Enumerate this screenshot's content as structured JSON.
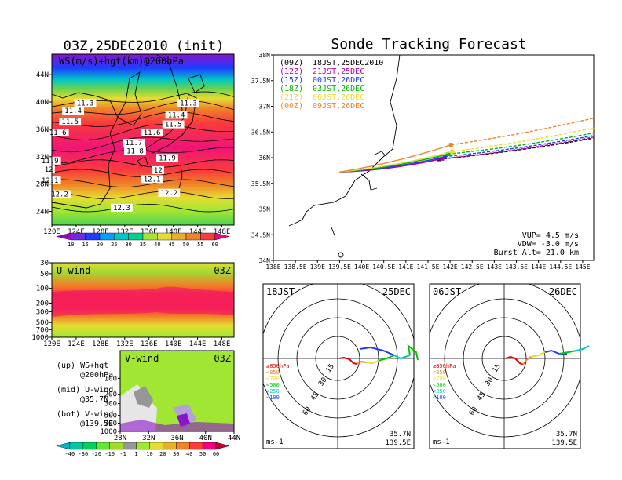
{
  "left": {
    "title": "03Z,25DEC2010 (init)",
    "ws_panel": {
      "label": "WS(m/s)+hgt(km)@200hPa",
      "lat_labels": [
        "44N",
        "40N",
        "36N",
        "32N",
        "28N",
        "24N"
      ],
      "lon_labels": [
        "120E",
        "124E",
        "128E",
        "132E",
        "136E",
        "140E",
        "144E",
        "148E"
      ],
      "contour_labels": [
        {
          "text": "11.3",
          "lon": 125.5,
          "lat": 39.6
        },
        {
          "text": "11.3",
          "lon": 142.5,
          "lat": 39.6
        },
        {
          "text": "11.4",
          "lon": 123.5,
          "lat": 38.5
        },
        {
          "text": "11.4",
          "lon": 140.5,
          "lat": 37.9
        },
        {
          "text": "11.5",
          "lon": 123.0,
          "lat": 36.9
        },
        {
          "text": "11.5",
          "lon": 140.0,
          "lat": 36.5
        },
        {
          "text": "11.6",
          "lon": 121.0,
          "lat": 35.3
        },
        {
          "text": "11.6",
          "lon": 136.5,
          "lat": 35.3
        },
        {
          "text": "11.7",
          "lon": 133.5,
          "lat": 33.8
        },
        {
          "text": "11.8",
          "lon": 133.7,
          "lat": 32.6
        },
        {
          "text": "11.9",
          "lon": 119.7,
          "lat": 31.2
        },
        {
          "text": "11.9",
          "lon": 139.0,
          "lat": 31.6
        },
        {
          "text": "12",
          "lon": 119.5,
          "lat": 29.9
        },
        {
          "text": "12",
          "lon": 137.5,
          "lat": 29.8
        },
        {
          "text": "12.1",
          "lon": 119.7,
          "lat": 28.3
        },
        {
          "text": "12.1",
          "lon": 136.5,
          "lat": 28.5
        },
        {
          "text": "12.2",
          "lon": 121.3,
          "lat": 26.3
        },
        {
          "text": "12.2",
          "lon": 139.3,
          "lat": 26.5
        },
        {
          "text": "12.3",
          "lon": 131.5,
          "lat": 24.3
        }
      ],
      "colorbar_labels": [
        "10",
        "15",
        "20",
        "25",
        "30",
        "35",
        "40",
        "45",
        "50",
        "55",
        "60"
      ],
      "colorbar_colors": [
        "#a000c8",
        "#6e28e6",
        "#1e3cff",
        "#00a0ff",
        "#00c8c8",
        "#00d28c",
        "#a0e632",
        "#e6dc32",
        "#e6af2d",
        "#f08228",
        "#fa3c3c",
        "#f00082"
      ]
    },
    "u_panel": {
      "label": "U-wind",
      "time": "03Z",
      "levels": [
        "30",
        "50",
        "100",
        "200",
        "300",
        "500",
        "700",
        "1000"
      ],
      "lon_labels": [
        "120E",
        "124E",
        "128E",
        "132E",
        "136E",
        "140E",
        "144E",
        "148E"
      ]
    },
    "v_panel": {
      "label": "V-wind",
      "time": "03Z",
      "levels": [
        "100",
        "200",
        "300",
        "500",
        "700",
        "1000"
      ],
      "lat_labels": [
        "28N",
        "32N",
        "36N",
        "40N",
        "44N"
      ],
      "colorbar_labels": [
        "-40",
        "-30",
        "-20",
        "-10",
        "-1",
        "1",
        "10",
        "20",
        "30",
        "40",
        "50",
        "60"
      ],
      "colorbar_colors": [
        "#00b4c8",
        "#00c8a0",
        "#00d25a",
        "#64e632",
        "#a0dc28",
        "#969696",
        "#a0e632",
        "#e6dc32",
        "#e6af2d",
        "#f08228",
        "#fa3c3c",
        "#f00082",
        "#c80032"
      ]
    },
    "legend_notes": [
      {
        "title": "(up) WS+hgt",
        "sub": "@200hPa"
      },
      {
        "title": "(mid) U-wind",
        "sub": "@35.7N"
      },
      {
        "title": "(bot) V-wind",
        "sub": "@139.5E"
      }
    ]
  },
  "right": {
    "title": "Sonde Tracking Forecast",
    "lat_labels": [
      "38N",
      "37.5N",
      "37N",
      "36.5N",
      "36N",
      "35.5N",
      "35N",
      "34.5N",
      "34N"
    ],
    "lon_labels": [
      "138E",
      "138.5E",
      "139E",
      "139.5E",
      "140E",
      "140.5E",
      "141E",
      "141.5E",
      "142E",
      "142.5E",
      "143E",
      "143.5E",
      "144E",
      "144.5E",
      "145E"
    ],
    "track_legend": [
      {
        "z": "(09Z)",
        "jst": "18JST,25DEC2010",
        "color": "#000000"
      },
      {
        "z": "(12Z)",
        "jst": "21JST,25DEC",
        "color": "#b400b4"
      },
      {
        "z": "(15Z)",
        "jst": "00JST,26DEC",
        "color": "#1e3cff"
      },
      {
        "z": "(18Z)",
        "jst": "03JST,26DEC",
        "color": "#00b400"
      },
      {
        "z": "(21Z)",
        "jst": "06JST,26DEC",
        "color": "#e6dc32"
      },
      {
        "z": "(00Z)",
        "jst": "09JST,26DEC",
        "color": "#f08228"
      }
    ],
    "params": [
      "VUP= 4.5 m/s",
      "VDW= -3.0 m/s",
      "Burst Alt= 21.0 km"
    ]
  },
  "hodo_left": {
    "time": "18JST",
    "date": "25DEC",
    "ring_labels": [
      "15",
      "30",
      "45",
      "60"
    ],
    "unit": "ms-1",
    "lat": "35.7N",
    "lon": "139.5E",
    "levels": [
      {
        "text": "≥850hPa",
        "color": "#e60000"
      },
      {
        "text": "<850",
        "color": "#f08228"
      },
      {
        "text": "<700",
        "color": "#e6dc32"
      },
      {
        "text": "<500",
        "color": "#00c800"
      },
      {
        "text": "<250",
        "color": "#00c8c8"
      },
      {
        "text": "<100",
        "color": "#1e3cff"
      }
    ]
  },
  "hodo_right": {
    "time": "06JST",
    "date": "26DEC",
    "ring_labels": [
      "15",
      "30",
      "45",
      "60"
    ],
    "unit": "ms-1",
    "lat": "35.7N",
    "lon": "139.5E",
    "levels": [
      {
        "text": "≥850hPa",
        "color": "#e60000"
      },
      {
        "text": "<850",
        "color": "#f08228"
      },
      {
        "text": "<700",
        "color": "#e6dc32"
      },
      {
        "text": "<500",
        "color": "#00c800"
      },
      {
        "text": "<250",
        "color": "#00c8c8"
      },
      {
        "text": "<100",
        "color": "#1e3cff"
      }
    ]
  }
}
